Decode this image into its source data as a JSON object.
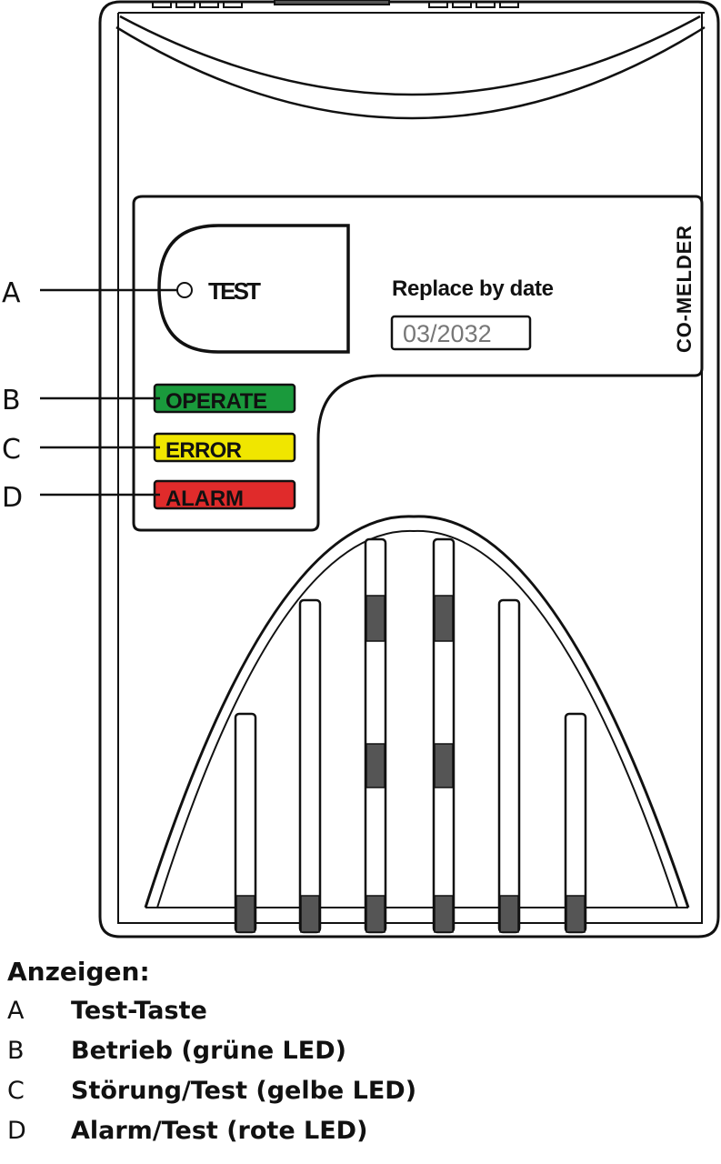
{
  "device": {
    "test_label": "TEST",
    "replace_label": "Replace by date",
    "replace_date": "03/2032",
    "product_label": "CO-MELDER",
    "leds": [
      {
        "label": "OPERATE",
        "color": "#1a9a3c"
      },
      {
        "label": "ERROR",
        "color": "#f0e600"
      },
      {
        "label": "ALARM",
        "color": "#e02b2b"
      }
    ],
    "callouts": [
      "A",
      "B",
      "C",
      "D"
    ]
  },
  "legend": {
    "title": "Anzeigen:",
    "items": [
      {
        "key": "A",
        "text": "Test-Taste"
      },
      {
        "key": "B",
        "text": "Betrieb (grüne LED)"
      },
      {
        "key": "C",
        "text": "Störung/Test (gelbe LED)"
      },
      {
        "key": "D",
        "text": "Alarm/Test (rote LED)"
      }
    ]
  }
}
